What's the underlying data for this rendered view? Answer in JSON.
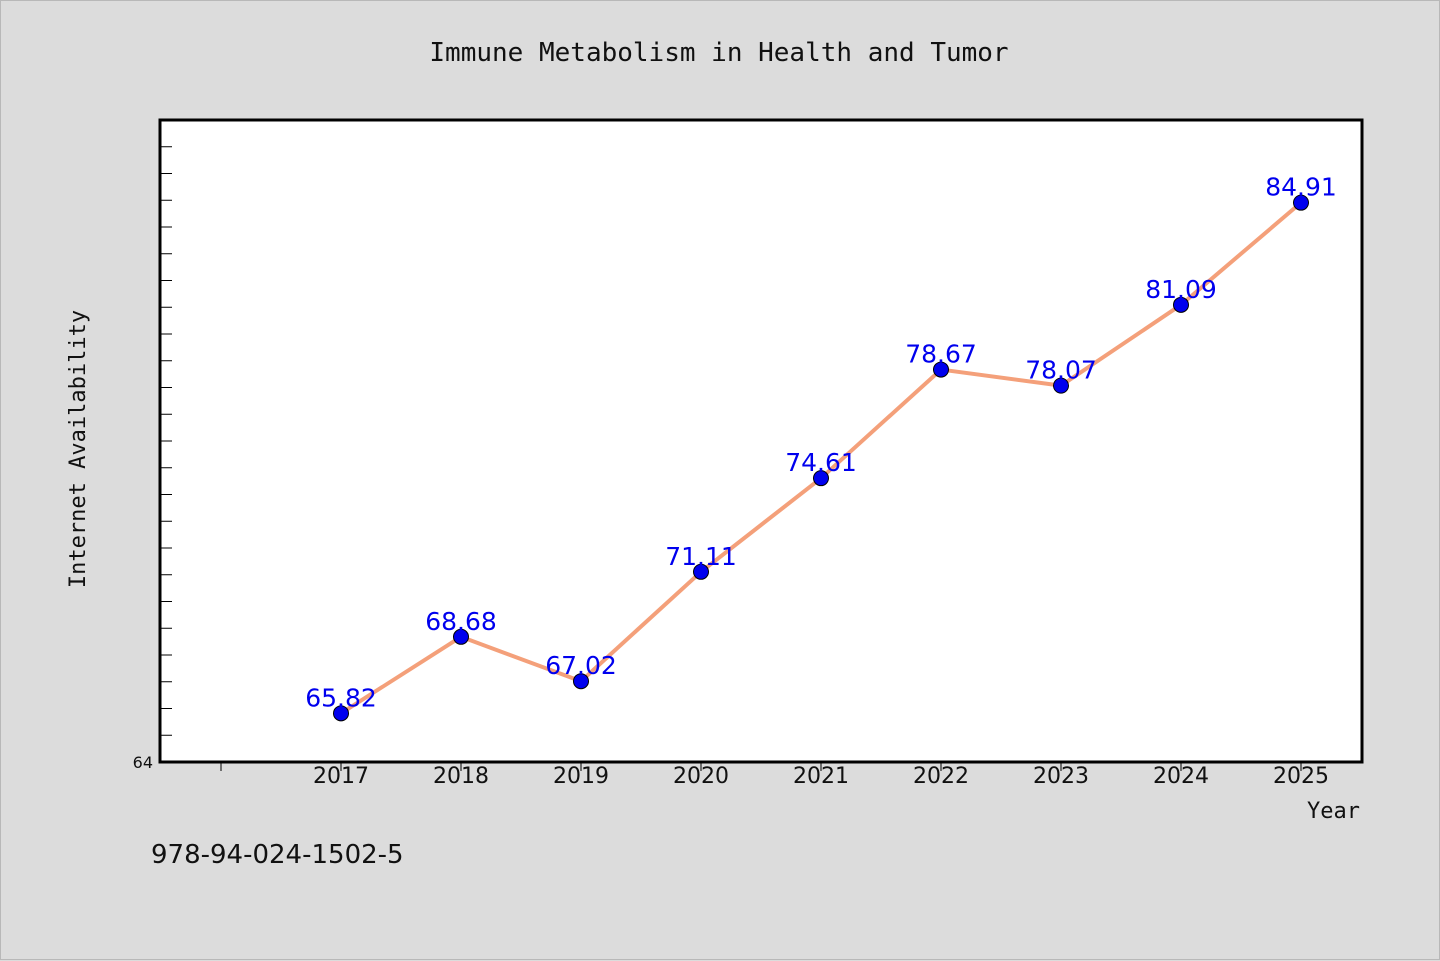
{
  "chart_data": {
    "type": "line",
    "title": "Immune Metabolism in Health and Tumor",
    "xlabel": "Year",
    "ylabel": "Internet Availability",
    "categories": [
      "2017",
      "2018",
      "2019",
      "2020",
      "2021",
      "2022",
      "2023",
      "2024",
      "2025"
    ],
    "values": [
      65.82,
      68.68,
      67.02,
      71.11,
      74.61,
      78.67,
      78.07,
      81.09,
      84.91
    ],
    "data_labels": [
      "65.82",
      "68.68",
      "67.02",
      "71.11",
      "74.61",
      "78.67",
      "78.07",
      "81.09",
      "84.91"
    ],
    "ylim": [
      64,
      88
    ],
    "y_tick_labels": [
      "64"
    ],
    "grid": false,
    "line_color": "#f4a07a",
    "marker_color": "#0000ee",
    "label_color": "#0000ee"
  },
  "footer": {
    "isbn": "978-94-024-1502-5"
  }
}
